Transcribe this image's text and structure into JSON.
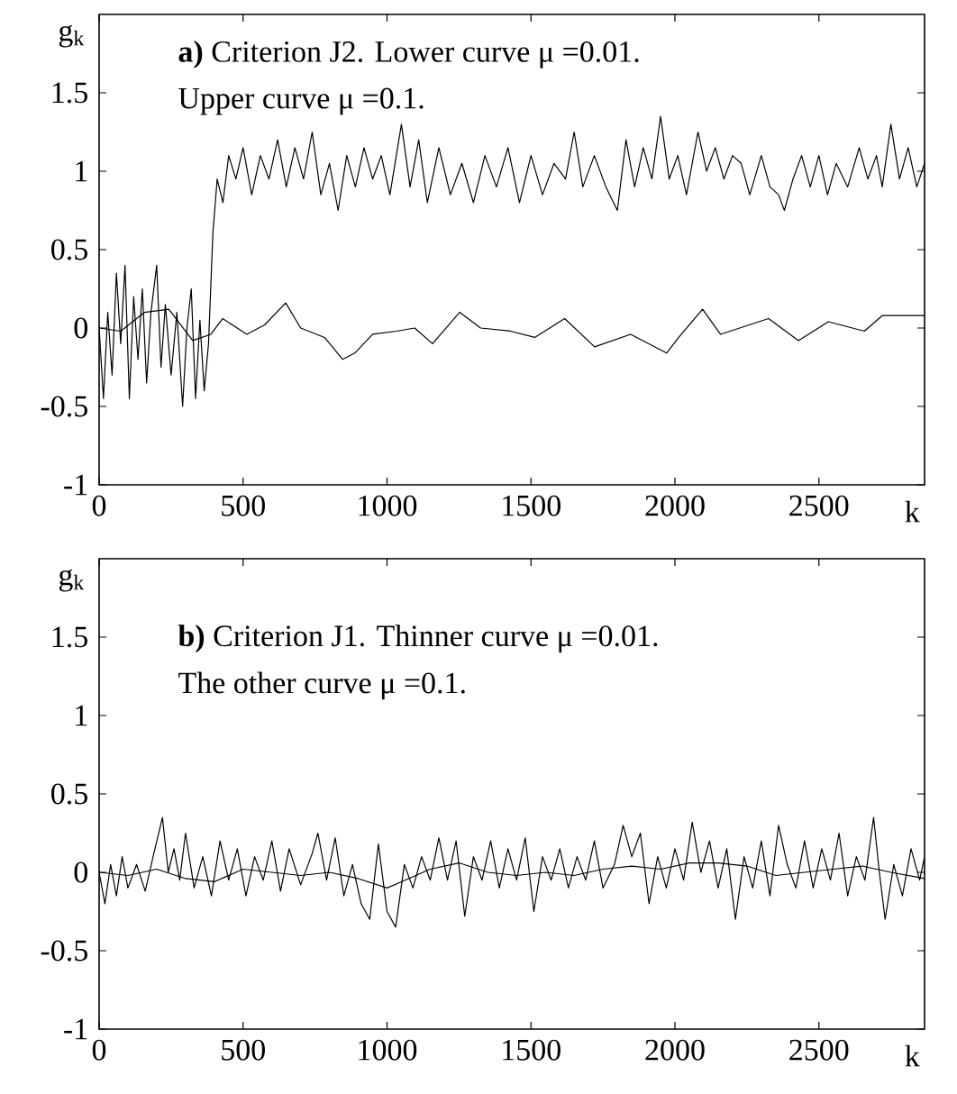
{
  "chart_data": [
    {
      "type": "line",
      "xlabel": "k",
      "ylabel": "g$_{k}$",
      "xlim": [
        0,
        2867
      ],
      "ylim": [
        -1,
        2
      ],
      "xticks": [
        0,
        500,
        1000,
        1500,
        2000,
        2500
      ],
      "yticks": [
        -1,
        -0.5,
        0,
        0.5,
        1,
        1.5
      ],
      "marker": "none",
      "line_style": "solid",
      "grid": false,
      "annotations": [
        "**a)** Criterion J2. Lower curve μ =0.01.",
        "Upper curve  μ =0.1."
      ],
      "series": [
        {
          "color": "#000000",
          "x": [
            0,
            75,
            158,
            242,
            325,
            388,
            429,
            513,
            575,
            648,
            700,
            783,
            846,
            888,
            950,
            1033,
            1096,
            1158,
            1252,
            1325,
            1429,
            1513,
            1617,
            1721,
            1846,
            1971,
            2013,
            2096,
            2158,
            2325,
            2429,
            2533,
            2658,
            2721,
            2867
          ],
          "values": [
            0,
            -0.02,
            0.1,
            0.12,
            -0.08,
            -0.04,
            0.06,
            -0.04,
            0.02,
            0.16,
            0,
            -0.06,
            -0.2,
            -0.16,
            -0.04,
            -0.02,
            0,
            -0.1,
            0.1,
            0,
            -0.02,
            -0.06,
            0.06,
            -0.12,
            -0.04,
            -0.16,
            -0.06,
            0.12,
            -0.04,
            0.06,
            -0.08,
            0.04,
            -0.02,
            0.08,
            0.08
          ]
        },
        {
          "color": "#000000",
          "x": [
            0,
            15,
            30,
            45,
            60,
            75,
            90,
            105,
            120,
            135,
            150,
            165,
            180,
            200,
            215,
            230,
            250,
            270,
            290,
            305,
            320,
            335,
            350,
            365,
            380,
            395,
            410,
            430,
            450,
            475,
            500,
            530,
            560,
            590,
            620,
            650,
            680,
            710,
            740,
            770,
            800,
            830,
            860,
            890,
            920,
            950,
            980,
            1010,
            1050,
            1080,
            1110,
            1140,
            1180,
            1220,
            1260,
            1300,
            1340,
            1380,
            1420,
            1460,
            1500,
            1540,
            1580,
            1620,
            1650,
            1680,
            1720,
            1760,
            1800,
            1830,
            1860,
            1890,
            1920,
            1950,
            1980,
            2010,
            2040,
            2080,
            2110,
            2140,
            2170,
            2200,
            2230,
            2260,
            2300,
            2330,
            2360,
            2380,
            2410,
            2440,
            2470,
            2500,
            2530,
            2560,
            2600,
            2640,
            2670,
            2700,
            2720,
            2750,
            2780,
            2810,
            2840,
            2867
          ],
          "values": [
            0,
            -0.45,
            0.1,
            -0.3,
            0.35,
            -0.1,
            0.4,
            -0.45,
            0.2,
            -0.2,
            0.25,
            -0.35,
            0.1,
            0.4,
            -0.25,
            0.15,
            -0.3,
            0.1,
            -0.5,
            0,
            0.25,
            -0.45,
            0.05,
            -0.4,
            -0.1,
            0.6,
            0.95,
            0.8,
            1.1,
            0.95,
            1.15,
            0.85,
            1.1,
            0.95,
            1.2,
            0.9,
            1.15,
            0.95,
            1.25,
            0.85,
            1.05,
            0.75,
            1.1,
            0.9,
            1.15,
            0.95,
            1.1,
            0.85,
            1.3,
            0.9,
            1.2,
            0.8,
            1.15,
            0.85,
            1.05,
            0.8,
            1.1,
            0.9,
            1.15,
            0.8,
            1.1,
            0.85,
            1.05,
            0.95,
            1.25,
            0.9,
            1.1,
            0.9,
            0.75,
            1.2,
            0.9,
            1.15,
            0.95,
            1.35,
            0.95,
            1.1,
            0.85,
            1.25,
            1.0,
            1.15,
            0.95,
            1.1,
            1.05,
            0.85,
            1.1,
            0.9,
            0.85,
            0.75,
            0.95,
            1.1,
            0.9,
            1.1,
            0.85,
            1.05,
            0.9,
            1.15,
            0.95,
            1.1,
            0.9,
            1.3,
            0.95,
            1.15,
            0.9,
            1.05
          ]
        }
      ]
    },
    {
      "type": "line",
      "xlabel": "k",
      "ylabel": "g$_{k}$",
      "xlim": [
        0,
        2867
      ],
      "ylim": [
        -1,
        2
      ],
      "xticks": [
        0,
        500,
        1000,
        1500,
        2000,
        2500
      ],
      "yticks": [
        -1,
        -0.5,
        0,
        0.5,
        1,
        1.5
      ],
      "marker": "none",
      "line_style": "solid",
      "grid": false,
      "annotations": [
        "**b)** Criterion J1. Thinner curve  μ =0.01.",
        "The other curve μ =0.1."
      ],
      "series": [
        {
          "color": "#000000",
          "x": [
            0,
            100,
            200,
            300,
            400,
            500,
            600,
            700,
            800,
            900,
            1000,
            1050,
            1150,
            1250,
            1350,
            1450,
            1550,
            1650,
            1750,
            1850,
            1950,
            2050,
            2150,
            2250,
            2350,
            2450,
            2550,
            2650,
            2750,
            2867
          ],
          "values": [
            0,
            -0.02,
            0.02,
            -0.04,
            -0.06,
            0.02,
            0,
            -0.02,
            0,
            -0.04,
            -0.1,
            -0.06,
            0.02,
            0.06,
            0,
            -0.02,
            0,
            -0.02,
            0.02,
            0.04,
            0.02,
            0.06,
            0.06,
            0.04,
            -0.02,
            0,
            0.02,
            0.04,
            0,
            -0.04
          ]
        },
        {
          "color": "#000000",
          "x": [
            0,
            20,
            40,
            60,
            80,
            100,
            130,
            160,
            190,
            220,
            240,
            260,
            280,
            300,
            330,
            360,
            390,
            420,
            450,
            480,
            510,
            540,
            570,
            600,
            630,
            660,
            700,
            740,
            760,
            790,
            820,
            850,
            880,
            910,
            940,
            970,
            1000,
            1030,
            1060,
            1090,
            1120,
            1150,
            1180,
            1210,
            1240,
            1270,
            1300,
            1330,
            1360,
            1390,
            1420,
            1450,
            1480,
            1510,
            1540,
            1570,
            1600,
            1630,
            1660,
            1690,
            1720,
            1750,
            1790,
            1820,
            1850,
            1880,
            1910,
            1940,
            1970,
            2000,
            2030,
            2060,
            2090,
            2120,
            2150,
            2180,
            2210,
            2240,
            2270,
            2300,
            2330,
            2360,
            2390,
            2420,
            2450,
            2480,
            2510,
            2540,
            2570,
            2600,
            2630,
            2660,
            2690,
            2710,
            2730,
            2760,
            2790,
            2820,
            2850,
            2867
          ],
          "values": [
            0,
            -0.2,
            0.05,
            -0.15,
            0.1,
            -0.1,
            0.05,
            -0.12,
            0.12,
            0.35,
            0,
            0.15,
            -0.05,
            0.25,
            -0.1,
            0.1,
            -0.15,
            0.2,
            -0.05,
            0.15,
            -0.15,
            0.1,
            -0.05,
            0.2,
            -0.12,
            0.15,
            -0.08,
            0.12,
            0.25,
            -0.05,
            0.22,
            -0.15,
            0.05,
            -0.2,
            -0.3,
            0.18,
            -0.25,
            -0.35,
            0.05,
            -0.1,
            0.1,
            -0.05,
            0.22,
            -0.05,
            0.2,
            -0.28,
            0.1,
            -0.05,
            0.2,
            -0.1,
            0.15,
            -0.05,
            0.22,
            -0.25,
            0.1,
            -0.05,
            0.15,
            -0.1,
            0.1,
            -0.05,
            0.2,
            -0.1,
            0.05,
            0.3,
            0.1,
            0.25,
            -0.2,
            0.1,
            -0.1,
            0.15,
            -0.05,
            0.32,
            0,
            0.2,
            -0.1,
            0.15,
            -0.3,
            0.1,
            -0.1,
            0.2,
            -0.15,
            0.3,
            0.05,
            -0.1,
            0.2,
            -0.1,
            0.15,
            -0.05,
            0.25,
            -0.15,
            0.1,
            -0.05,
            0.35,
            0,
            -0.3,
            0.05,
            -0.15,
            0.15,
            -0.05,
            0.1
          ]
        }
      ]
    }
  ]
}
